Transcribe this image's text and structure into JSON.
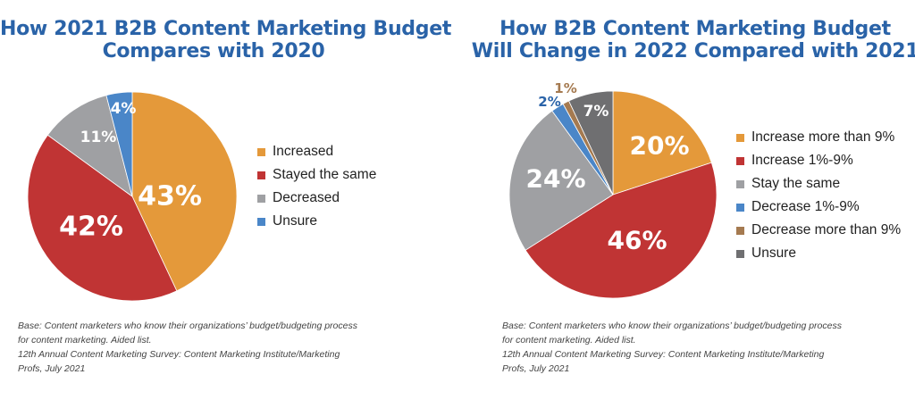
{
  "colors": {
    "title": "#2a63a8",
    "orange": "#e4993a",
    "red": "#c03434",
    "gray": "#9fa0a3",
    "blue": "#4a86c8",
    "brown": "#a57a50",
    "darkgray": "#6f6f71"
  },
  "chart_data": [
    {
      "type": "pie",
      "title_lines": [
        "How 2021 B2B Content Marketing Budget",
        "Compares with 2020"
      ],
      "slices": [
        {
          "label": "Increased",
          "value": 43,
          "display": "43%",
          "color": "#e4993a"
        },
        {
          "label": "Stayed the same",
          "value": 42,
          "display": "42%",
          "color": "#c03434"
        },
        {
          "label": "Decreased",
          "value": 11,
          "display": "11%",
          "color": "#9fa0a3"
        },
        {
          "label": "Unsure",
          "value": 4,
          "display": "4%",
          "color": "#4a86c8"
        }
      ],
      "legend_position": "right",
      "footnote_lines": [
        "Base: Content marketers who know their organizations’ budget/budgeting process",
        "for content marketing. Aided list.",
        "12th Annual Content Marketing Survey: Content Marketing Institute/Marketing",
        "Profs, July 2021"
      ]
    },
    {
      "type": "pie",
      "title_lines": [
        "How B2B Content Marketing Budget",
        "Will Change in 2022 Compared with 2021"
      ],
      "slices": [
        {
          "label": "Increase more than 9%",
          "value": 20,
          "display": "20%",
          "color": "#e4993a"
        },
        {
          "label": "Increase 1%-9%",
          "value": 46,
          "display": "46%",
          "color": "#c03434"
        },
        {
          "label": "Stay the same",
          "value": 24,
          "display": "24%",
          "color": "#9fa0a3"
        },
        {
          "label": "Decrease 1%-9%",
          "value": 2,
          "display": "2%",
          "color": "#4a86c8"
        },
        {
          "label": "Decrease more than 9%",
          "value": 1,
          "display": "1%",
          "color": "#a57a50"
        },
        {
          "label": "Unsure",
          "value": 7,
          "display": "7%",
          "color": "#6f6f71"
        }
      ],
      "legend_position": "right",
      "footnote_lines": [
        "Base: Content marketers who know their organizations’ budget/budgeting process",
        "for content marketing. Aided list.",
        "12th Annual Content Marketing Survey: Content Marketing Institute/Marketing",
        "Profs, July 2021"
      ]
    }
  ]
}
